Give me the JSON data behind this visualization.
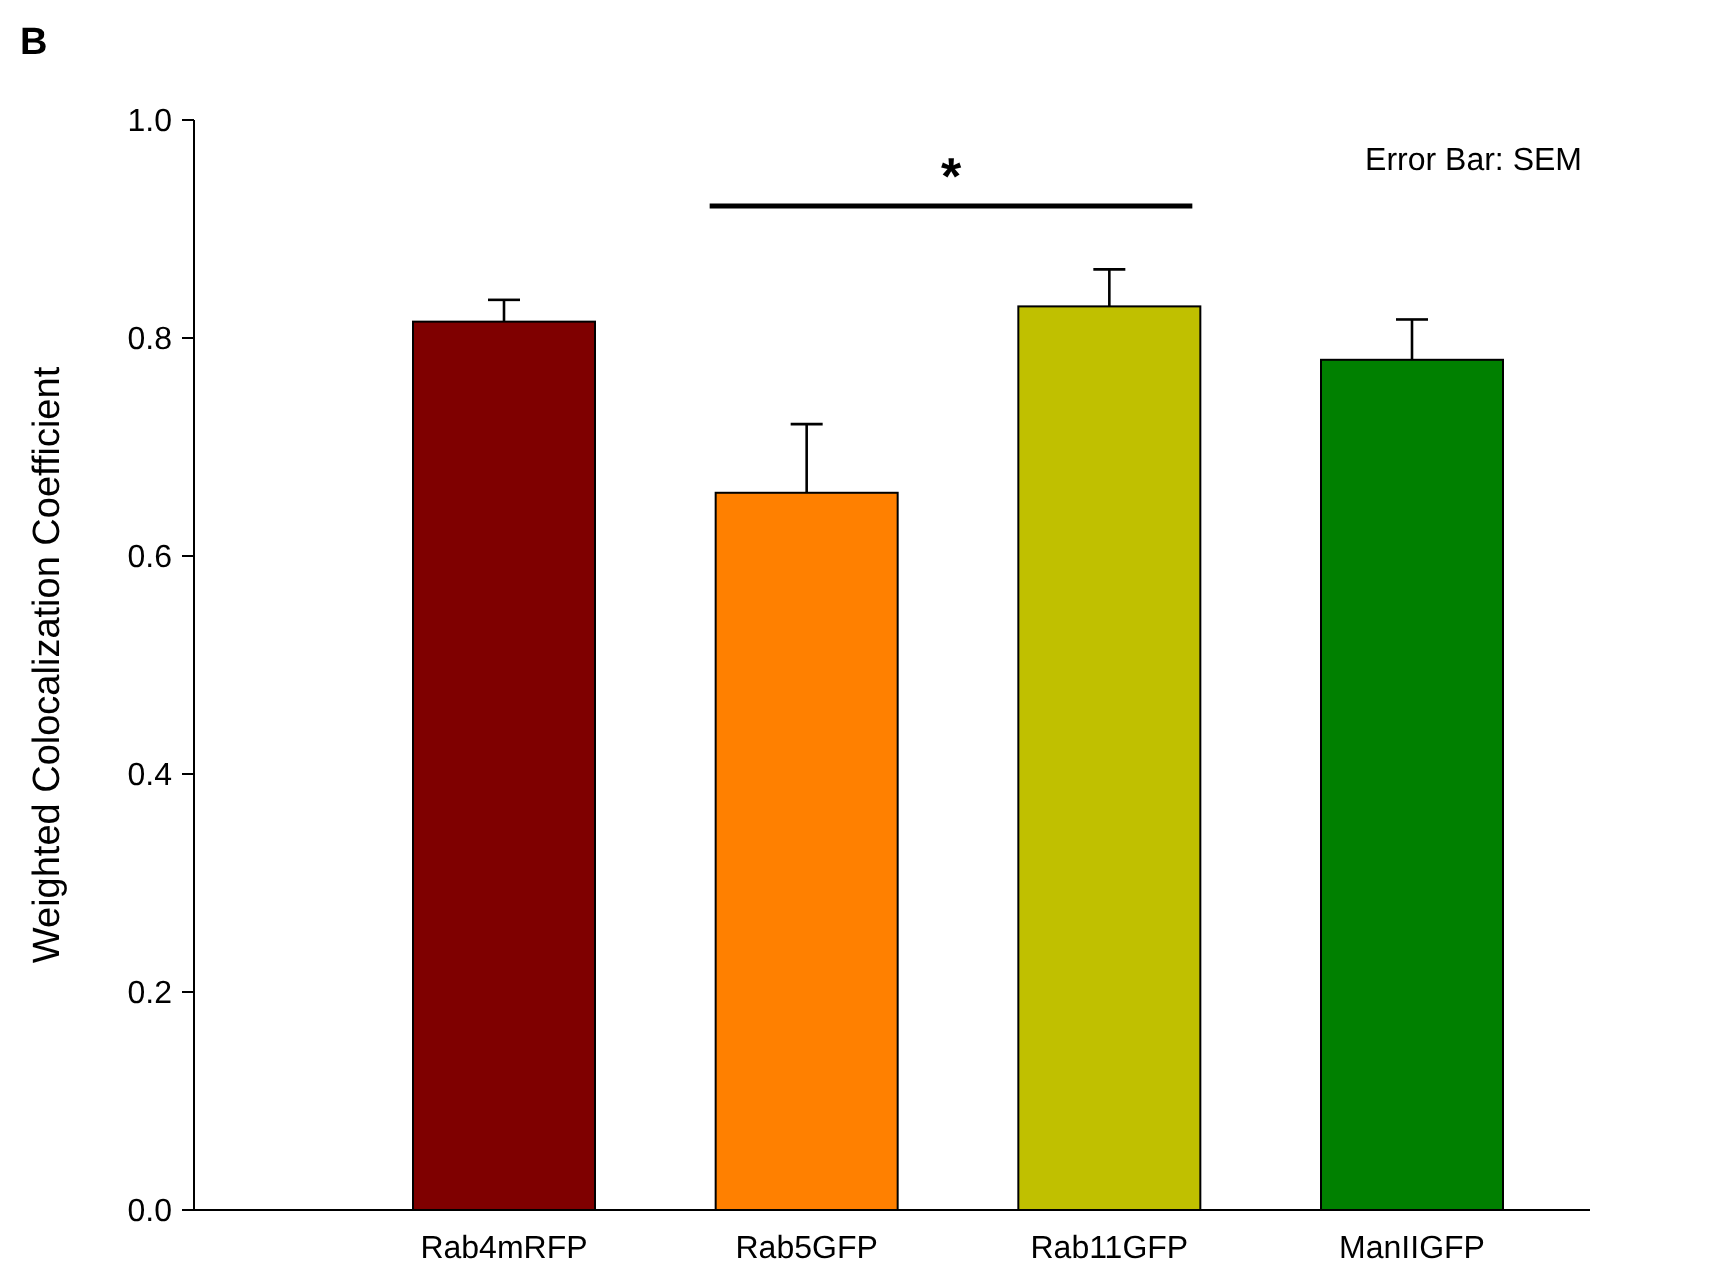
{
  "chart_data": {
    "type": "bar",
    "ylabel": "Weighted Colocalization Coefficient",
    "categories": [
      "Rab4mRFP",
      "Rab5GFP",
      "Rab11GFP",
      "ManIIGFP"
    ],
    "values": [
      0.815,
      0.658,
      0.829,
      0.78
    ],
    "colors": [
      "#7f0000",
      "#ff8000",
      "#c0c000",
      "#008000"
    ],
    "errors": [
      [
        0.815,
        0.835
      ],
      [
        0.658,
        0.721
      ],
      [
        0.829,
        0.863
      ],
      [
        0.78,
        0.817
      ]
    ],
    "ylim": [
      0,
      1
    ],
    "yticks": [
      {
        "value": 0,
        "label": "0.0"
      },
      {
        "value": 0.2,
        "label": "0.2"
      },
      {
        "value": 0.4,
        "label": "0.4"
      },
      {
        "value": 0.6,
        "label": "0.6"
      },
      {
        "value": 0.8,
        "label": "0.8"
      },
      {
        "value": 1,
        "label": "1.0"
      }
    ],
    "grid": false,
    "annotations": [
      "B",
      "Error Bar: SEM",
      "*"
    ]
  }
}
